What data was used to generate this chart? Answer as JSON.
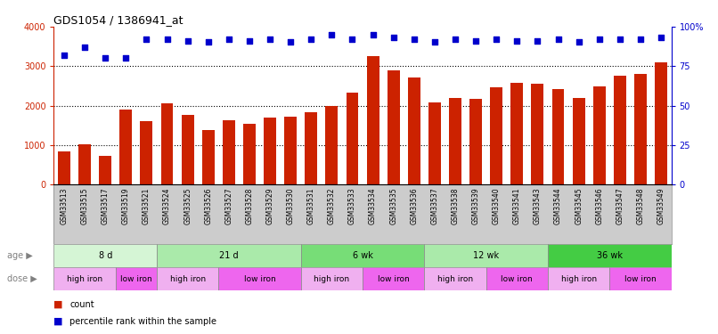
{
  "title": "GDS1054 / 1386941_at",
  "samples": [
    "GSM33513",
    "GSM33515",
    "GSM33517",
    "GSM33519",
    "GSM33521",
    "GSM33524",
    "GSM33525",
    "GSM33526",
    "GSM33527",
    "GSM33528",
    "GSM33529",
    "GSM33530",
    "GSM33531",
    "GSM33532",
    "GSM33533",
    "GSM33534",
    "GSM33535",
    "GSM33536",
    "GSM33537",
    "GSM33538",
    "GSM33539",
    "GSM33540",
    "GSM33541",
    "GSM33543",
    "GSM33544",
    "GSM33545",
    "GSM33546",
    "GSM33547",
    "GSM33548",
    "GSM33549"
  ],
  "counts": [
    840,
    1020,
    740,
    1910,
    1600,
    2050,
    1760,
    1380,
    1620,
    1550,
    1700,
    1730,
    1840,
    1990,
    2330,
    3250,
    2880,
    2700,
    2090,
    2190,
    2180,
    2470,
    2570,
    2560,
    2410,
    2200,
    2480,
    2750,
    2810,
    3100
  ],
  "percentiles": [
    82,
    87,
    80,
    80,
    92,
    92,
    91,
    90,
    92,
    91,
    92,
    90,
    92,
    95,
    92,
    95,
    93,
    92,
    90,
    92,
    91,
    92,
    91,
    91,
    92,
    90,
    92,
    92,
    92,
    93
  ],
  "age_groups": [
    {
      "label": "8 d",
      "start": 0,
      "end": 5,
      "color": "#d5f5d5"
    },
    {
      "label": "21 d",
      "start": 5,
      "end": 12,
      "color": "#aaeaaa"
    },
    {
      "label": "6 wk",
      "start": 12,
      "end": 18,
      "color": "#77dd77"
    },
    {
      "label": "12 wk",
      "start": 18,
      "end": 24,
      "color": "#aaeaaa"
    },
    {
      "label": "36 wk",
      "start": 24,
      "end": 30,
      "color": "#44cc44"
    }
  ],
  "dose_groups": [
    {
      "label": "high iron",
      "start": 0,
      "end": 3,
      "color": "#f0b0f0"
    },
    {
      "label": "low iron",
      "start": 3,
      "end": 5,
      "color": "#ee66ee"
    },
    {
      "label": "high iron",
      "start": 5,
      "end": 8,
      "color": "#f0b0f0"
    },
    {
      "label": "low iron",
      "start": 8,
      "end": 12,
      "color": "#ee66ee"
    },
    {
      "label": "high iron",
      "start": 12,
      "end": 15,
      "color": "#f0b0f0"
    },
    {
      "label": "low iron",
      "start": 15,
      "end": 18,
      "color": "#ee66ee"
    },
    {
      "label": "high iron",
      "start": 18,
      "end": 21,
      "color": "#f0b0f0"
    },
    {
      "label": "low iron",
      "start": 21,
      "end": 24,
      "color": "#ee66ee"
    },
    {
      "label": "high iron",
      "start": 24,
      "end": 27,
      "color": "#f0b0f0"
    },
    {
      "label": "low iron",
      "start": 27,
      "end": 30,
      "color": "#ee66ee"
    }
  ],
  "bar_color": "#cc2200",
  "dot_color": "#0000cc",
  "xlabel_bg": "#cccccc",
  "ylim_left": [
    0,
    4000
  ],
  "ylim_right": [
    0,
    100
  ],
  "yticks_left": [
    0,
    1000,
    2000,
    3000,
    4000
  ],
  "yticks_right": [
    0,
    25,
    50,
    75,
    100
  ],
  "bg_color": "#ffffff"
}
